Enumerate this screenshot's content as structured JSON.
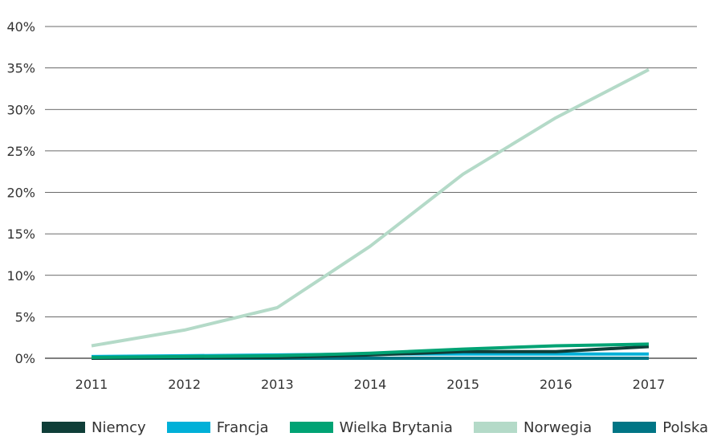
{
  "chart_data": {
    "type": "line",
    "categories": [
      "2011",
      "2012",
      "2013",
      "2014",
      "2015",
      "2016",
      "2017"
    ],
    "y_ticks": [
      "0%",
      "5%",
      "10%",
      "15%",
      "20%",
      "25%",
      "30%",
      "35%",
      "40%"
    ],
    "ylim": [
      0,
      40
    ],
    "grid": true,
    "legend_position": "bottom",
    "series": [
      {
        "name": "Norwegia",
        "color": "#b4dac8",
        "values": [
          1.5,
          3.4,
          6.1,
          13.5,
          22.2,
          29.0,
          34.8
        ]
      },
      {
        "name": "Francja",
        "color": "#00b0d8",
        "values": [
          0.2,
          0.3,
          0.4,
          0.5,
          0.5,
          0.5,
          0.5
        ]
      },
      {
        "name": "Polska",
        "color": "#007585",
        "values": [
          0.0,
          0.0,
          0.0,
          0.0,
          0.0,
          0.0,
          0.0
        ]
      },
      {
        "name": "Niemcy",
        "color": "#0f3e38",
        "values": [
          0.0,
          0.1,
          0.1,
          0.4,
          0.8,
          0.8,
          1.4
        ]
      },
      {
        "name": "Wielka Brytania",
        "color": "#00a374",
        "values": [
          0.1,
          0.2,
          0.3,
          0.6,
          1.1,
          1.5,
          1.7
        ]
      }
    ]
  },
  "legend": [
    {
      "label": "Niemcy",
      "color": "#0f3e38"
    },
    {
      "label": "Francja",
      "color": "#00b0d8"
    },
    {
      "label": "Wielka Brytania",
      "color": "#00a374"
    },
    {
      "label": "Norwegia",
      "color": "#b4dac8"
    },
    {
      "label": "Polska",
      "color": "#007585"
    }
  ]
}
